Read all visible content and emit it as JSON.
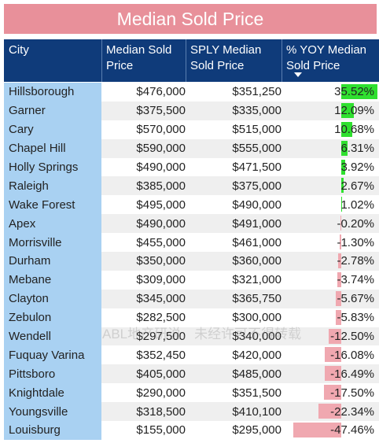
{
  "title": "Median Sold Price",
  "headers": {
    "city": "City",
    "median": "Median Sold Price",
    "sply": "SPLY Median Sold Price",
    "yoy": "% YOY Median Sold Price"
  },
  "watermark": "ABL地产研说，未经许可不得转载",
  "colors": {
    "positive": "#2fe02f",
    "negative": "#f0a8b0",
    "header": "#0f3b7a",
    "title": "#e8909a",
    "city_cell": "#a9d1f2"
  },
  "chart_data": {
    "type": "table",
    "sorted_by": "% YOY Median Sold Price (descending)",
    "rows": [
      {
        "city": "Hillsborough",
        "median": "$476,000",
        "sply": "$351,250",
        "yoy": "35.52%",
        "yoy_value": 35.52
      },
      {
        "city": "Garner",
        "median": "$375,500",
        "sply": "$335,000",
        "yoy": "12.09%",
        "yoy_value": 12.09
      },
      {
        "city": "Cary",
        "median": "$570,000",
        "sply": "$515,000",
        "yoy": "10.68%",
        "yoy_value": 10.68
      },
      {
        "city": "Chapel Hill",
        "median": "$590,000",
        "sply": "$555,000",
        "yoy": "6.31%",
        "yoy_value": 6.31
      },
      {
        "city": "Holly Springs",
        "median": "$490,000",
        "sply": "$471,500",
        "yoy": "3.92%",
        "yoy_value": 3.92
      },
      {
        "city": "Raleigh",
        "median": "$385,000",
        "sply": "$375,000",
        "yoy": "2.67%",
        "yoy_value": 2.67
      },
      {
        "city": "Wake Forest",
        "median": "$495,000",
        "sply": "$490,000",
        "yoy": "1.02%",
        "yoy_value": 1.02
      },
      {
        "city": "Apex",
        "median": "$490,000",
        "sply": "$491,000",
        "yoy": "-0.20%",
        "yoy_value": -0.2
      },
      {
        "city": "Morrisville",
        "median": "$455,000",
        "sply": "$461,000",
        "yoy": "-1.30%",
        "yoy_value": -1.3
      },
      {
        "city": "Durham",
        "median": "$350,000",
        "sply": "$360,000",
        "yoy": "-2.78%",
        "yoy_value": -2.78
      },
      {
        "city": "Mebane",
        "median": "$309,000",
        "sply": "$321,000",
        "yoy": "-3.74%",
        "yoy_value": -3.74
      },
      {
        "city": "Clayton",
        "median": "$345,000",
        "sply": "$365,750",
        "yoy": "-5.67%",
        "yoy_value": -5.67
      },
      {
        "city": "Zebulon",
        "median": "$282,500",
        "sply": "$300,000",
        "yoy": "-5.83%",
        "yoy_value": -5.83
      },
      {
        "city": "Wendell",
        "median": "$297,500",
        "sply": "$340,000",
        "yoy": "-12.50%",
        "yoy_value": -12.5
      },
      {
        "city": "Fuquay Varina",
        "median": "$352,450",
        "sply": "$420,000",
        "yoy": "-16.08%",
        "yoy_value": -16.08
      },
      {
        "city": "Pittsboro",
        "median": "$405,000",
        "sply": "$485,000",
        "yoy": "-16.49%",
        "yoy_value": -16.49
      },
      {
        "city": "Knightdale",
        "median": "$290,000",
        "sply": "$351,500",
        "yoy": "-17.50%",
        "yoy_value": -17.5
      },
      {
        "city": "Youngsville",
        "median": "$318,500",
        "sply": "$410,100",
        "yoy": "-22.34%",
        "yoy_value": -22.34
      },
      {
        "city": "Louisburg",
        "median": "$155,000",
        "sply": "$295,000",
        "yoy": "-47.46%",
        "yoy_value": -47.46
      }
    ]
  }
}
